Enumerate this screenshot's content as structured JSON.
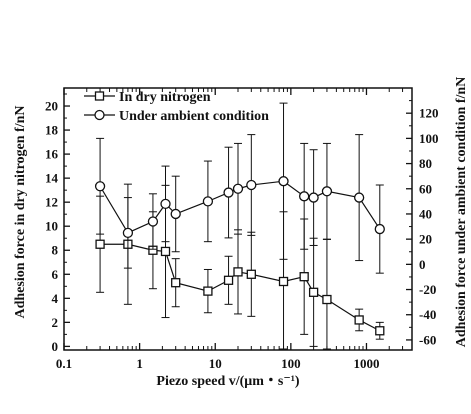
{
  "chart_data": {
    "type": "scatter",
    "xlabel": "Piezo speed v/(μm・s⁻¹)",
    "ylabel_left": "Adhesion force in dry nitrogen f/nN",
    "ylabel_right": "Adhesion force under ambient condition f/nN",
    "xscale": "log",
    "xlim": [
      0.1,
      4000
    ],
    "ylim_left": [
      -0.3,
      21.5
    ],
    "ylim_right": [
      -68,
      140
    ],
    "grid": false,
    "legend_position": "top-left",
    "x_ticks": [
      0.1,
      1,
      10,
      100,
      1000
    ],
    "x_tick_labels": [
      "0.1",
      "1",
      "10",
      "100",
      "1000"
    ],
    "y_left_ticks": [
      0,
      2,
      4,
      6,
      8,
      10,
      12,
      14,
      16,
      18,
      20
    ],
    "y_left_tick_labels": [
      "0",
      "2",
      "4",
      "6",
      "8",
      "10",
      "12",
      "14",
      "16",
      "18",
      "20"
    ],
    "y_right_ticks": [
      -60,
      -40,
      -20,
      0,
      20,
      40,
      60,
      80,
      100,
      120
    ],
    "y_right_tick_labels": [
      "-60",
      "-40",
      "-20",
      "0",
      "20",
      "40",
      "60",
      "80",
      "100",
      "120"
    ],
    "series": [
      {
        "name": "In dry nitrogen",
        "axis": "left",
        "marker": "square",
        "x": [
          0.3,
          0.7,
          1.5,
          2.2,
          3,
          8,
          15,
          20,
          30,
          80,
          150,
          200,
          300,
          800,
          1500
        ],
        "y": [
          8.5,
          8.5,
          8.0,
          7.9,
          5.3,
          4.6,
          5.5,
          6.2,
          6.0,
          5.4,
          5.8,
          4.5,
          3.9,
          2.2,
          1.3
        ],
        "err": [
          4.0,
          5.0,
          3.2,
          5.5,
          2.0,
          1.8,
          2.0,
          3.5,
          3.5,
          5.8,
          4.8,
          4.5,
          5.0,
          0.9,
          0.7
        ]
      },
      {
        "name": "Under ambient condition",
        "axis": "right",
        "marker": "circle",
        "x": [
          0.3,
          0.7,
          1.5,
          2.2,
          3,
          8,
          15,
          20,
          30,
          80,
          150,
          200,
          300,
          800,
          1500
        ],
        "y": [
          62,
          25,
          34,
          48,
          40,
          50,
          57,
          60,
          63,
          66,
          54,
          53,
          58,
          53,
          28
        ],
        "err": [
          38,
          28,
          22,
          30,
          30,
          32,
          36,
          36,
          40,
          62,
          42,
          38,
          38,
          50,
          35
        ]
      }
    ]
  }
}
